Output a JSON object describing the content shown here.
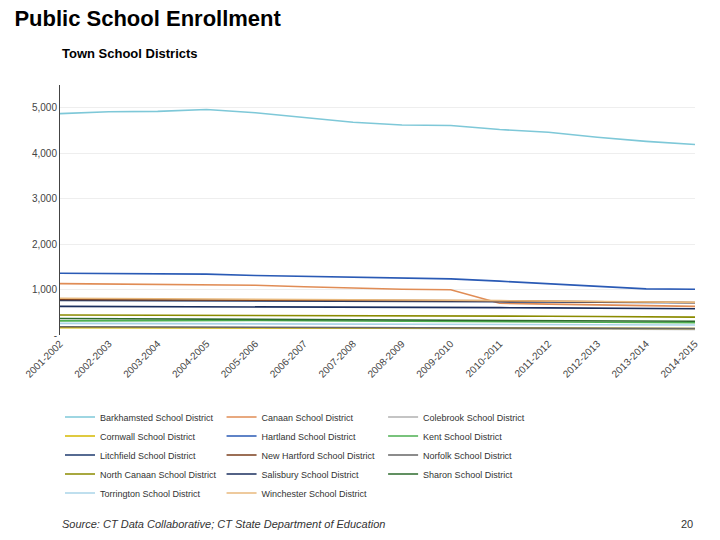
{
  "chart_data": {
    "type": "line",
    "title": "Public School Enrollment",
    "subtitle": "Town School Districts",
    "annotations": [
      "Source: CT Data Collaborative; CT State Department of Education",
      "20"
    ],
    "categories": [
      "2001-2002",
      "2002-2003",
      "2003-2004",
      "2004-2005",
      "2005-2006",
      "2006-2007",
      "2007-2008",
      "2008-2009",
      "2009-2010",
      "2010-2011",
      "2011-2012",
      "2012-2013",
      "2013-2014",
      "2014-2015"
    ],
    "series": [
      {
        "name": "Barkhamsted School District",
        "color": "#7ec8d8",
        "values": [
          4870,
          4910,
          4920,
          4960,
          4890,
          4790,
          4680,
          4620,
          4610,
          4520,
          4460,
          4350,
          4260,
          4190
        ]
      },
      {
        "name": "Canaan School District",
        "color": "#e08c55",
        "values": [
          1130,
          1125,
          1115,
          1110,
          1095,
          1060,
          1025,
          1005,
          995,
          700,
          680,
          660,
          640,
          630
        ]
      },
      {
        "name": "Colebrook School District",
        "color": "#b0b0b0",
        "values": [
          175,
          170,
          165,
          162,
          158,
          155,
          150,
          146,
          142,
          138,
          134,
          130,
          126,
          122
        ]
      },
      {
        "name": "Cornwall School District",
        "color": "#d4b800",
        "values": [
          160,
          160,
          165,
          168,
          170,
          168,
          164,
          160,
          157,
          155,
          152,
          150,
          147,
          144
        ]
      },
      {
        "name": "Hartland School District",
        "color": "#2a5ab5",
        "values": [
          1360,
          1350,
          1340,
          1340,
          1310,
          1290,
          1265,
          1245,
          1235,
          1185,
          1125,
          1060,
          1015,
          1005
        ]
      },
      {
        "name": "Kent School District",
        "color": "#4caf50",
        "values": [
          310,
          315,
          318,
          322,
          320,
          315,
          308,
          302,
          296,
          290,
          284,
          278,
          273,
          268
        ]
      },
      {
        "name": "Litchfield School District",
        "color": "#1e3a6e",
        "values": [
          760,
          758,
          756,
          758,
          754,
          750,
          745,
          740,
          736,
          730,
          725,
          720,
          715,
          710
        ]
      },
      {
        "name": "New Hartford School District",
        "color": "#7b3f1e",
        "values": [
          780,
          778,
          776,
          780,
          778,
          774,
          770,
          766,
          760,
          752,
          744,
          735,
          725,
          715
        ]
      },
      {
        "name": "Norfolk School District",
        "color": "#666666",
        "values": [
          182,
          178,
          175,
          172,
          169,
          166,
          163,
          160,
          157,
          154,
          151,
          148,
          145,
          142
        ]
      },
      {
        "name": "North Canaan School District",
        "color": "#8b8b00",
        "values": [
          440,
          438,
          436,
          440,
          437,
          434,
          430,
          426,
          422,
          418,
          412,
          406,
          400,
          394
        ]
      },
      {
        "name": "Salisbury School District",
        "color": "#1a2e5e",
        "values": [
          630,
          628,
          625,
          628,
          625,
          621,
          617,
          613,
          608,
          602,
          596,
          590,
          584,
          578
        ]
      },
      {
        "name": "Sharon School District",
        "color": "#2d6b2d",
        "values": [
          362,
          358,
          354,
          350,
          346,
          342,
          338,
          334,
          330,
          326,
          320,
          314,
          308,
          302
        ]
      },
      {
        "name": "Torrington School District",
        "color": "#aad4e8",
        "values": [
          255,
          253,
          251,
          248,
          246,
          243,
          240,
          237,
          234,
          231,
          228,
          225,
          222,
          219
        ]
      },
      {
        "name": "Winchester School District",
        "color": "#e8b87c",
        "values": [
          810,
          806,
          802,
          797,
          792,
          786,
          779,
          772,
          764,
          756,
          747,
          737,
          727,
          717
        ]
      }
    ],
    "ylim": [
      0,
      5500
    ],
    "yticks": [
      {
        "value": 0,
        "label": "-"
      },
      {
        "value": 1000,
        "label": "1,000"
      },
      {
        "value": 2000,
        "label": "2,000"
      },
      {
        "value": 3000,
        "label": "3,000"
      },
      {
        "value": 4000,
        "label": "4,000"
      },
      {
        "value": 5000,
        "label": "5,000"
      }
    ],
    "grid": true,
    "legend": "bottom"
  }
}
